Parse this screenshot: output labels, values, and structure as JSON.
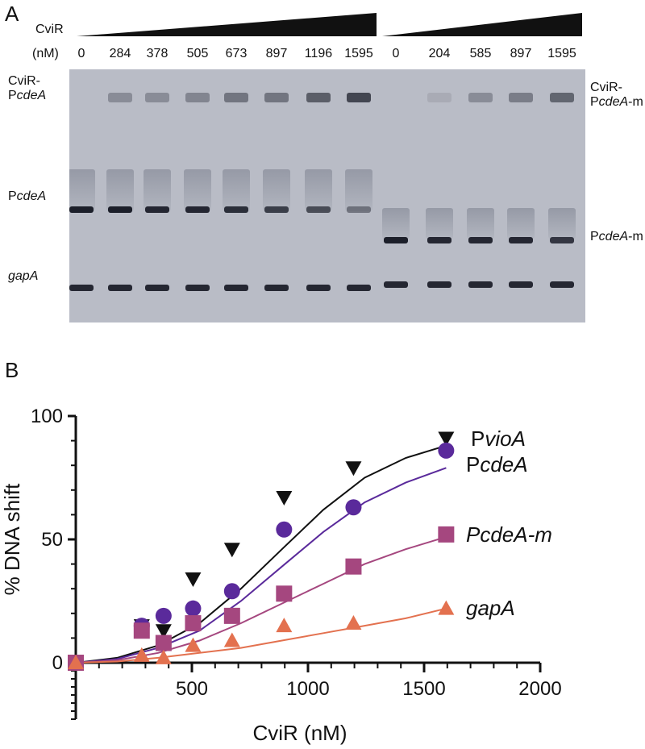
{
  "panelA": {
    "letter": "A",
    "cvir_label": "CviR",
    "nm_label": "(nM)",
    "lanes_wt": [
      "0",
      "284",
      "378",
      "505",
      "673",
      "897",
      "1196",
      "1595"
    ],
    "lanes_mut": [
      "0",
      "204",
      "585",
      "897",
      "1595"
    ],
    "left_labels": {
      "complex_line1": "CviR-",
      "complex_line2_prefix": "P",
      "complex_line2_italic": "cdeA",
      "free_prefix": "P",
      "free_italic": "cdeA",
      "gapA": "gapA"
    },
    "right_labels": {
      "complex_line1": "CviR-",
      "complex_line2_prefix": "P",
      "complex_line2_italic": "cdeA",
      "complex_line2_suffix": "-m",
      "free_prefix": "P",
      "free_italic": "cdeA",
      "free_suffix": "-m"
    },
    "wt_free_band_intensity": [
      1.0,
      1.0,
      0.95,
      0.95,
      0.9,
      0.8,
      0.7,
      0.45
    ],
    "wt_complex_intensity": [
      0.0,
      0.3,
      0.3,
      0.35,
      0.45,
      0.45,
      0.6,
      0.75
    ],
    "mut_free_band_intensity": [
      1.0,
      0.95,
      0.95,
      0.95,
      0.85
    ],
    "mut_complex_intensity": [
      0.0,
      0.1,
      0.3,
      0.4,
      0.55
    ]
  },
  "panelB": {
    "letter": "B"
  },
  "chart_data": {
    "type": "scatter",
    "xlabel": "CviR (nM)",
    "ylabel": "% DNA shift",
    "xlim": [
      0,
      2000
    ],
    "ylim": [
      0,
      100
    ],
    "xticks": [
      500,
      1000,
      1500,
      2000
    ],
    "yticks": [
      0,
      50,
      100
    ],
    "series": [
      {
        "name_prefix": "P",
        "name_italic": "vioA",
        "marker": "triangle-down",
        "color": "#111111",
        "x": [
          0,
          284,
          378,
          505,
          673,
          897,
          1196,
          1595
        ],
        "y": [
          0,
          15,
          13,
          34,
          46,
          67,
          79,
          91
        ],
        "fit": [
          0,
          2,
          7,
          16,
          30,
          46,
          62,
          75,
          83,
          88
        ]
      },
      {
        "name_prefix": "P",
        "name_italic": "cdeA",
        "marker": "circle",
        "color": "#5a2a9b",
        "x": [
          0,
          284,
          378,
          505,
          673,
          897,
          1196,
          1595
        ],
        "y": [
          0,
          15,
          19,
          22,
          29,
          54,
          63,
          86
        ],
        "fit": [
          0,
          1.5,
          6,
          13,
          25,
          39,
          53,
          65,
          73,
          79
        ]
      },
      {
        "name_prefix": "",
        "name_italic": "PcdeA-m",
        "marker": "square",
        "color": "#a5477f",
        "x": [
          0,
          284,
          378,
          505,
          673,
          897,
          1196,
          1595
        ],
        "y": [
          0,
          13,
          8,
          16,
          19,
          28,
          39,
          52
        ],
        "fit": [
          0,
          1,
          4,
          9,
          16,
          24,
          32,
          40,
          46,
          51
        ]
      },
      {
        "name_prefix": "",
        "name_italic": "gapA",
        "marker": "triangle-up",
        "color": "#e3714f",
        "x": [
          0,
          284,
          378,
          505,
          673,
          897,
          1196,
          1595
        ],
        "y": [
          0,
          3,
          2,
          7,
          9,
          15,
          16,
          22
        ],
        "fit": [
          0,
          0.5,
          2,
          4,
          6,
          9,
          12,
          15,
          18,
          22
        ]
      }
    ],
    "fit_x": [
      0,
      178,
      355,
      533,
      711,
      888,
      1066,
      1244,
      1421,
      1595
    ]
  }
}
